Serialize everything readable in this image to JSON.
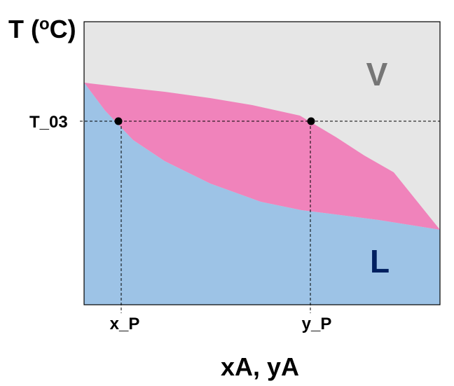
{
  "diagram": {
    "y_axis_title": "T (",
    "y_axis_title_super": "o",
    "y_axis_title_end": "C)",
    "x_axis_title": "xA, yA",
    "temperature_label": "T_03",
    "x_marker_label": "x_P",
    "y_marker_label": "y_P",
    "vapor_region_label": "V",
    "liquid_region_label": "L",
    "colors": {
      "vapor_region": "#e6e6e6",
      "two_phase_region": "#f083bb",
      "liquid_region": "#9dc3e6",
      "vapor_label": "#767676",
      "liquid_label": "#002060",
      "border": "#000000"
    }
  }
}
